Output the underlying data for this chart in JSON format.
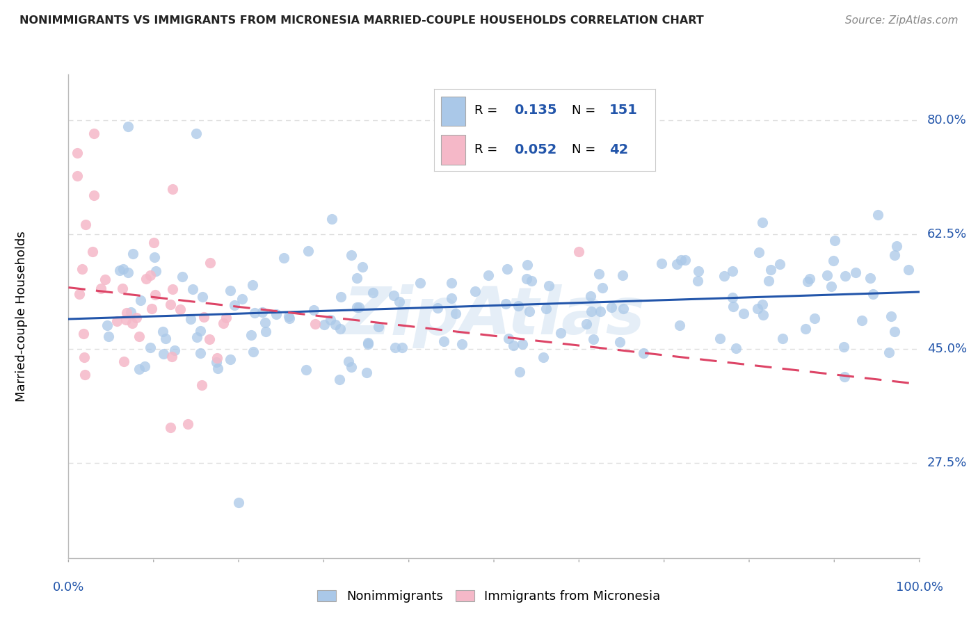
{
  "title": "NONIMMIGRANTS VS IMMIGRANTS FROM MICRONESIA MARRIED-COUPLE HOUSEHOLDS CORRELATION CHART",
  "source": "Source: ZipAtlas.com",
  "ylabel": "Married-couple Households",
  "yticks": [
    27.5,
    45.0,
    62.5,
    80.0
  ],
  "ytick_labels": [
    "27.5%",
    "45.0%",
    "62.5%",
    "80.0%"
  ],
  "xmin": 0.0,
  "xmax": 1.0,
  "ymin": 13.0,
  "ymax": 87.0,
  "blue_R": "0.135",
  "blue_N": "151",
  "pink_R": "0.052",
  "pink_N": "42",
  "blue_color": "#aac8e8",
  "pink_color": "#f5b8c8",
  "blue_line_color": "#2255aa",
  "pink_line_color": "#dd4466",
  "watermark": "ZipAtlas",
  "background_color": "#ffffff",
  "grid_color": "#dddddd",
  "title_color": "#222222",
  "axis_label_color": "#2255aa"
}
